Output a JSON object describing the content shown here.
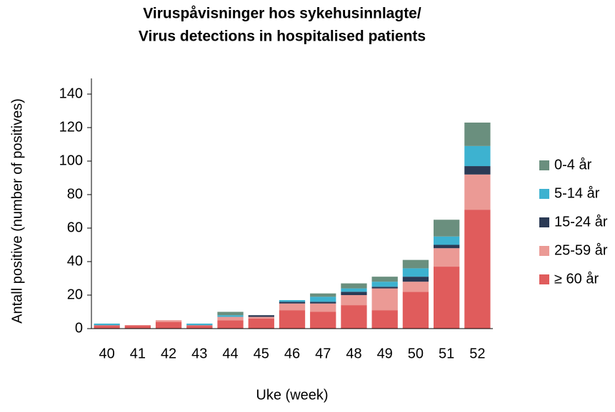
{
  "chart_data": {
    "type": "stacked-bar",
    "title": "Viruspåvisninger hos sykehusinnlagte/",
    "subtitle": "Virus detections in hospitalised patients",
    "x_label": "Uke (week)",
    "y_label": "Antall positive (number of positives)",
    "categories": [
      "40",
      "41",
      "42",
      "43",
      "44",
      "45",
      "46",
      "47",
      "48",
      "49",
      "50",
      "51",
      "52"
    ],
    "series": [
      {
        "name": "≥ 60 år",
        "color": "#e05c5c",
        "values": [
          2,
          2,
          4,
          2,
          5,
          6,
          11,
          10,
          14,
          11,
          22,
          37,
          71
        ]
      },
      {
        "name": "25-59 år",
        "color": "#eb9a95",
        "values": [
          0,
          0,
          1,
          0,
          2,
          1,
          4,
          5,
          6,
          13,
          6,
          11,
          21
        ]
      },
      {
        "name": "15-24 år",
        "color": "#2b3a55",
        "values": [
          0,
          0,
          0,
          0,
          0,
          1,
          1,
          1,
          2,
          1,
          3,
          2,
          5
        ]
      },
      {
        "name": "5-14 år",
        "color": "#3db2d0",
        "values": [
          1,
          0,
          0,
          1,
          1,
          0,
          1,
          3,
          2,
          3,
          5,
          5,
          12
        ]
      },
      {
        "name": "0-4 år",
        "color": "#6a8f7e",
        "values": [
          0,
          0,
          0,
          0,
          2,
          0,
          0,
          2,
          3,
          3,
          5,
          10,
          14
        ]
      }
    ],
    "ylim": [
      0,
      140
    ],
    "yticks": [
      0,
      20,
      40,
      60,
      80,
      100,
      120,
      140
    ],
    "grid": false,
    "legend": "right"
  }
}
